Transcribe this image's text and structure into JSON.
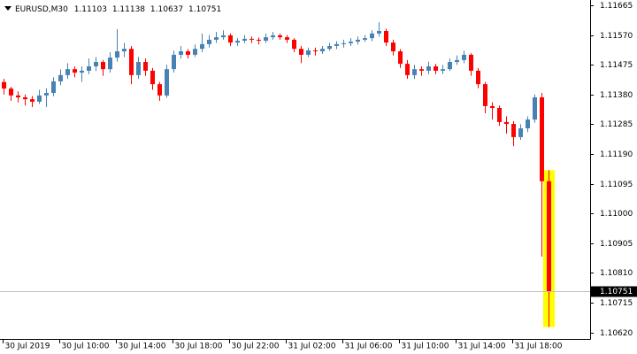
{
  "chart_data": {
    "type": "candlestick",
    "symbol": "EURUSD,M30",
    "ohlc": [
      [
        1.1142,
        1.1143,
        1.1138,
        1.11399
      ],
      [
        1.11399,
        1.11405,
        1.1136,
        1.11377
      ],
      [
        1.11377,
        1.1139,
        1.11355,
        1.11371
      ],
      [
        1.11371,
        1.1138,
        1.11345,
        1.11365
      ],
      [
        1.11365,
        1.11375,
        1.1134,
        1.11357
      ],
      [
        1.11357,
        1.11395,
        1.1135,
        1.11377
      ],
      [
        1.11377,
        1.114,
        1.1134,
        1.11385
      ],
      [
        1.11385,
        1.11435,
        1.11375,
        1.11422
      ],
      [
        1.11422,
        1.1146,
        1.1141,
        1.11442
      ],
      [
        1.11442,
        1.1148,
        1.1143,
        1.11461
      ],
      [
        1.11461,
        1.1147,
        1.11435,
        1.1145
      ],
      [
        1.1145,
        1.1147,
        1.1142,
        1.11456
      ],
      [
        1.11456,
        1.11495,
        1.11445,
        1.1147
      ],
      [
        1.1147,
        1.115,
        1.11455,
        1.11484
      ],
      [
        1.11484,
        1.1149,
        1.1144,
        1.11461
      ],
      [
        1.11461,
        1.11515,
        1.1145,
        1.11498
      ],
      [
        1.11498,
        1.11589,
        1.11485,
        1.11518
      ],
      [
        1.11518,
        1.11545,
        1.115,
        1.11526
      ],
      [
        1.11526,
        1.11535,
        1.11413,
        1.11442
      ],
      [
        1.11442,
        1.115,
        1.1143,
        1.11484
      ],
      [
        1.11484,
        1.11495,
        1.1144,
        1.11456
      ],
      [
        1.11456,
        1.11465,
        1.11395,
        1.11413
      ],
      [
        1.11413,
        1.1142,
        1.1136,
        1.11377
      ],
      [
        1.11377,
        1.11475,
        1.1137,
        1.11461
      ],
      [
        1.11461,
        1.1152,
        1.1145,
        1.11507
      ],
      [
        1.11507,
        1.11535,
        1.11495,
        1.11518
      ],
      [
        1.11518,
        1.11525,
        1.11495,
        1.11507
      ],
      [
        1.11507,
        1.1154,
        1.115,
        1.11526
      ],
      [
        1.11526,
        1.11575,
        1.11515,
        1.11541
      ],
      [
        1.11541,
        1.1157,
        1.1153,
        1.11555
      ],
      [
        1.11555,
        1.1158,
        1.11545,
        1.11563
      ],
      [
        1.11563,
        1.11585,
        1.11555,
        1.11569
      ],
      [
        1.11569,
        1.11575,
        1.11535,
        1.11546
      ],
      [
        1.11546,
        1.1156,
        1.11535,
        1.11552
      ],
      [
        1.11552,
        1.1157,
        1.11545,
        1.11558
      ],
      [
        1.11558,
        1.11565,
        1.11545,
        1.11555
      ],
      [
        1.11555,
        1.11562,
        1.1154,
        1.11552
      ],
      [
        1.11552,
        1.11575,
        1.11545,
        1.11563
      ],
      [
        1.11563,
        1.1158,
        1.11555,
        1.11569
      ],
      [
        1.11569,
        1.11575,
        1.11555,
        1.11563
      ],
      [
        1.11563,
        1.1157,
        1.11545,
        1.11555
      ],
      [
        1.11555,
        1.1156,
        1.11515,
        1.11526
      ],
      [
        1.11526,
        1.11535,
        1.1148,
        1.11507
      ],
      [
        1.11507,
        1.1153,
        1.115,
        1.11521
      ],
      [
        1.11521,
        1.1153,
        1.11505,
        1.11518
      ],
      [
        1.11518,
        1.11535,
        1.1151,
        1.11526
      ],
      [
        1.11526,
        1.11545,
        1.1152,
        1.11535
      ],
      [
        1.11535,
        1.1155,
        1.11525,
        1.11541
      ],
      [
        1.11541,
        1.11555,
        1.1153,
        1.11544
      ],
      [
        1.11544,
        1.1156,
        1.11535,
        1.11549
      ],
      [
        1.11549,
        1.11565,
        1.1154,
        1.11555
      ],
      [
        1.11555,
        1.1157,
        1.11548,
        1.1156
      ],
      [
        1.1156,
        1.11585,
        1.1155,
        1.11575
      ],
      [
        1.11575,
        1.11611,
        1.11565,
        1.11583
      ],
      [
        1.11583,
        1.1159,
        1.11535,
        1.11546
      ],
      [
        1.11546,
        1.11555,
        1.11505,
        1.11518
      ],
      [
        1.11518,
        1.11525,
        1.11465,
        1.11478
      ],
      [
        1.11478,
        1.1149,
        1.1143,
        1.11442
      ],
      [
        1.11442,
        1.11475,
        1.1143,
        1.11461
      ],
      [
        1.11461,
        1.1147,
        1.1144,
        1.11456
      ],
      [
        1.11456,
        1.11485,
        1.11445,
        1.1147
      ],
      [
        1.1147,
        1.11478,
        1.11445,
        1.11456
      ],
      [
        1.11456,
        1.11475,
        1.11445,
        1.11461
      ],
      [
        1.11461,
        1.11495,
        1.11455,
        1.11484
      ],
      [
        1.11484,
        1.11505,
        1.11475,
        1.1149
      ],
      [
        1.1149,
        1.1152,
        1.1148,
        1.11507
      ],
      [
        1.11507,
        1.11512,
        1.1144,
        1.11456
      ],
      [
        1.11456,
        1.11465,
        1.114,
        1.11413
      ],
      [
        1.11413,
        1.1142,
        1.1132,
        1.11343
      ],
      [
        1.11343,
        1.11355,
        1.113,
        1.11337
      ],
      [
        1.11337,
        1.11345,
        1.1128,
        1.11292
      ],
      [
        1.11292,
        1.1131,
        1.11255,
        1.11286
      ],
      [
        1.11286,
        1.11295,
        1.11215,
        1.11244
      ],
      [
        1.11244,
        1.11285,
        1.11235,
        1.11272
      ],
      [
        1.11272,
        1.1131,
        1.1126,
        1.113
      ],
      [
        1.113,
        1.1138,
        1.1129,
        1.11371
      ],
      [
        1.11371,
        1.11385,
        1.10862,
        1.11103
      ],
      [
        1.11103,
        1.11138,
        1.10637,
        1.10751
      ]
    ],
    "up_color": "#4682b4",
    "down_color": "#ff0000",
    "highlight_color": "#ffff00",
    "ylim": [
      1.10599,
      1.11682
    ],
    "yticks": [
      1.11665,
      {
        "value": 1.1157,
        "label": "1.11570"
      },
      1.11475,
      {
        "value": 1.1138,
        "label": "1.11380"
      },
      1.11285,
      {
        "value": 1.1119,
        "label": "1.11190"
      },
      1.11095,
      {
        "value": 1.11,
        "label": "1.11000"
      },
      1.10905,
      {
        "value": 1.1081,
        "label": "1.10810"
      },
      1.10715,
      {
        "value": 1.1062,
        "label": "1.10620"
      }
    ],
    "xticks": [
      "30 Jul 2019",
      "30 Jul 10:00",
      "30 Jul 14:00",
      "30 Jul 18:00",
      "30 Jul 22:00",
      "31 Jul 02:00",
      "31 Jul 06:00",
      "31 Jul 10:00",
      "31 Jul 14:00",
      "31 Jul 18:00"
    ]
  }
}
